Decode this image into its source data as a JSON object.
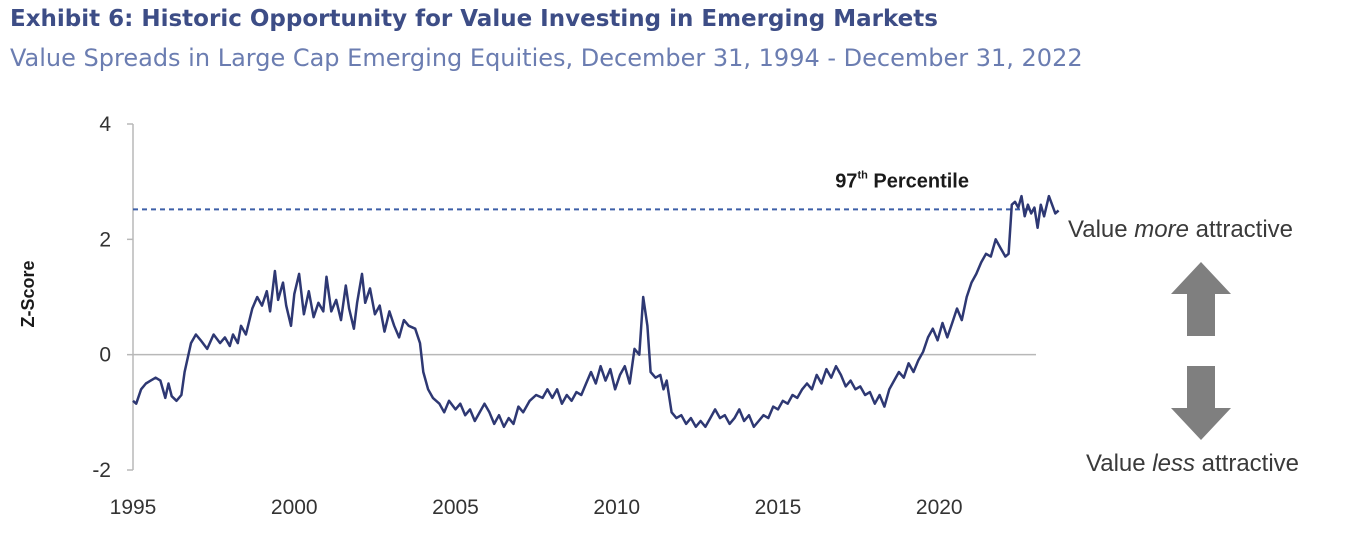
{
  "header": {
    "title": "Exhibit 6: Historic Opportunity for Value Investing in Emerging Markets",
    "subtitle": "Value Spreads in Large Cap Emerging Equities, December 31, 1994 - December 31, 2022"
  },
  "annotations": {
    "percentile_label": "97",
    "percentile_sup": "th",
    "percentile_suffix": " Percentile",
    "more_prefix": "Value ",
    "more_emph": "more",
    "more_suffix": " attractive",
    "less_prefix": "Value ",
    "less_emph": "less",
    "less_suffix": " attractive",
    "up_arrow_icon": "up-arrow-icon",
    "down_arrow_icon": "down-arrow-icon"
  },
  "colors": {
    "line": "#2e3873",
    "reference_line": "#3d5fa8",
    "title": "#3d4d86",
    "subtitle": "#6b7db1",
    "arrow": "#7f7f7f",
    "axis": "#b8b8b8"
  },
  "chart_data": {
    "type": "line",
    "title": "",
    "xlabel": "",
    "ylabel": "Z-Score",
    "xlim": [
      1995,
      2023
    ],
    "ylim": [
      -2,
      4
    ],
    "xticks": [
      1995,
      2000,
      2005,
      2010,
      2015,
      2020
    ],
    "yticks": [
      -2,
      0,
      2,
      4
    ],
    "reference_line": {
      "y": 2.52,
      "label": "97th Percentile",
      "style": "dashed"
    },
    "grid": false,
    "series": [
      {
        "values": [
          [
            1995.0,
            -0.8
          ],
          [
            1995.1,
            -0.85
          ],
          [
            1995.25,
            -0.6
          ],
          [
            1995.4,
            -0.5
          ],
          [
            1995.55,
            -0.45
          ],
          [
            1995.7,
            -0.4
          ],
          [
            1995.85,
            -0.45
          ],
          [
            1996.0,
            -0.75
          ],
          [
            1996.1,
            -0.5
          ],
          [
            1996.2,
            -0.72
          ],
          [
            1996.35,
            -0.8
          ],
          [
            1996.5,
            -0.7
          ],
          [
            1996.6,
            -0.3
          ],
          [
            1996.8,
            0.2
          ],
          [
            1996.95,
            0.35
          ],
          [
            1997.1,
            0.25
          ],
          [
            1997.3,
            0.1
          ],
          [
            1997.5,
            0.35
          ],
          [
            1997.7,
            0.2
          ],
          [
            1997.85,
            0.3
          ],
          [
            1998.0,
            0.15
          ],
          [
            1998.1,
            0.35
          ],
          [
            1998.25,
            0.2
          ],
          [
            1998.35,
            0.5
          ],
          [
            1998.5,
            0.35
          ],
          [
            1998.7,
            0.8
          ],
          [
            1998.85,
            1.0
          ],
          [
            1999.0,
            0.85
          ],
          [
            1999.15,
            1.1
          ],
          [
            1999.25,
            0.75
          ],
          [
            1999.4,
            1.45
          ],
          [
            1999.5,
            0.95
          ],
          [
            1999.65,
            1.25
          ],
          [
            1999.75,
            0.85
          ],
          [
            1999.9,
            0.5
          ],
          [
            2000.0,
            1.05
          ],
          [
            2000.15,
            1.4
          ],
          [
            2000.3,
            0.7
          ],
          [
            2000.45,
            1.1
          ],
          [
            2000.6,
            0.65
          ],
          [
            2000.75,
            0.9
          ],
          [
            2000.9,
            0.75
          ],
          [
            2001.0,
            1.35
          ],
          [
            2001.15,
            0.75
          ],
          [
            2001.3,
            0.95
          ],
          [
            2001.45,
            0.6
          ],
          [
            2001.6,
            1.2
          ],
          [
            2001.7,
            0.8
          ],
          [
            2001.85,
            0.45
          ],
          [
            2001.95,
            0.9
          ],
          [
            2002.1,
            1.4
          ],
          [
            2002.2,
            0.9
          ],
          [
            2002.35,
            1.15
          ],
          [
            2002.5,
            0.7
          ],
          [
            2002.65,
            0.85
          ],
          [
            2002.8,
            0.4
          ],
          [
            2002.95,
            0.75
          ],
          [
            2003.1,
            0.5
          ],
          [
            2003.25,
            0.3
          ],
          [
            2003.4,
            0.6
          ],
          [
            2003.55,
            0.5
          ],
          [
            2003.75,
            0.45
          ],
          [
            2003.9,
            0.2
          ],
          [
            2004.0,
            -0.3
          ],
          [
            2004.15,
            -0.6
          ],
          [
            2004.3,
            -0.75
          ],
          [
            2004.5,
            -0.85
          ],
          [
            2004.65,
            -1.0
          ],
          [
            2004.8,
            -0.8
          ],
          [
            2005.0,
            -0.95
          ],
          [
            2005.15,
            -0.85
          ],
          [
            2005.3,
            -1.05
          ],
          [
            2005.45,
            -0.95
          ],
          [
            2005.6,
            -1.15
          ],
          [
            2005.75,
            -1.0
          ],
          [
            2005.9,
            -0.85
          ],
          [
            2006.05,
            -1.0
          ],
          [
            2006.2,
            -1.2
          ],
          [
            2006.35,
            -1.05
          ],
          [
            2006.5,
            -1.25
          ],
          [
            2006.65,
            -1.1
          ],
          [
            2006.8,
            -1.2
          ],
          [
            2006.95,
            -0.9
          ],
          [
            2007.1,
            -1.0
          ],
          [
            2007.3,
            -0.8
          ],
          [
            2007.5,
            -0.7
          ],
          [
            2007.7,
            -0.75
          ],
          [
            2007.85,
            -0.6
          ],
          [
            2008.0,
            -0.75
          ],
          [
            2008.15,
            -0.6
          ],
          [
            2008.3,
            -0.85
          ],
          [
            2008.45,
            -0.7
          ],
          [
            2008.6,
            -0.8
          ],
          [
            2008.75,
            -0.65
          ],
          [
            2008.9,
            -0.7
          ],
          [
            2009.05,
            -0.5
          ],
          [
            2009.2,
            -0.3
          ],
          [
            2009.35,
            -0.5
          ],
          [
            2009.5,
            -0.2
          ],
          [
            2009.65,
            -0.45
          ],
          [
            2009.8,
            -0.25
          ],
          [
            2009.95,
            -0.6
          ],
          [
            2010.1,
            -0.35
          ],
          [
            2010.25,
            -0.2
          ],
          [
            2010.4,
            -0.5
          ],
          [
            2010.55,
            0.1
          ],
          [
            2010.7,
            0.0
          ],
          [
            2010.82,
            1.0
          ],
          [
            2010.95,
            0.5
          ],
          [
            2011.05,
            -0.3
          ],
          [
            2011.2,
            -0.4
          ],
          [
            2011.35,
            -0.35
          ],
          [
            2011.45,
            -0.6
          ],
          [
            2011.55,
            -0.45
          ],
          [
            2011.7,
            -1.0
          ],
          [
            2011.85,
            -1.1
          ],
          [
            2012.0,
            -1.05
          ],
          [
            2012.15,
            -1.2
          ],
          [
            2012.3,
            -1.1
          ],
          [
            2012.45,
            -1.25
          ],
          [
            2012.6,
            -1.15
          ],
          [
            2012.75,
            -1.25
          ],
          [
            2012.9,
            -1.1
          ],
          [
            2013.05,
            -0.95
          ],
          [
            2013.2,
            -1.1
          ],
          [
            2013.35,
            -1.05
          ],
          [
            2013.5,
            -1.2
          ],
          [
            2013.65,
            -1.1
          ],
          [
            2013.8,
            -0.95
          ],
          [
            2013.95,
            -1.15
          ],
          [
            2014.1,
            -1.05
          ],
          [
            2014.25,
            -1.25
          ],
          [
            2014.4,
            -1.15
          ],
          [
            2014.55,
            -1.05
          ],
          [
            2014.7,
            -1.1
          ],
          [
            2014.85,
            -0.9
          ],
          [
            2015.0,
            -0.95
          ],
          [
            2015.15,
            -0.8
          ],
          [
            2015.3,
            -0.85
          ],
          [
            2015.45,
            -0.7
          ],
          [
            2015.6,
            -0.75
          ],
          [
            2015.75,
            -0.6
          ],
          [
            2015.9,
            -0.5
          ],
          [
            2016.05,
            -0.6
          ],
          [
            2016.2,
            -0.35
          ],
          [
            2016.35,
            -0.5
          ],
          [
            2016.5,
            -0.25
          ],
          [
            2016.65,
            -0.4
          ],
          [
            2016.8,
            -0.2
          ],
          [
            2016.95,
            -0.35
          ],
          [
            2017.1,
            -0.55
          ],
          [
            2017.25,
            -0.45
          ],
          [
            2017.4,
            -0.6
          ],
          [
            2017.55,
            -0.55
          ],
          [
            2017.7,
            -0.7
          ],
          [
            2017.85,
            -0.65
          ],
          [
            2018.0,
            -0.85
          ],
          [
            2018.15,
            -0.7
          ],
          [
            2018.3,
            -0.9
          ],
          [
            2018.45,
            -0.6
          ],
          [
            2018.6,
            -0.45
          ],
          [
            2018.75,
            -0.3
          ],
          [
            2018.9,
            -0.4
          ],
          [
            2019.05,
            -0.15
          ],
          [
            2019.2,
            -0.3
          ],
          [
            2019.35,
            -0.1
          ],
          [
            2019.5,
            0.05
          ],
          [
            2019.65,
            0.3
          ],
          [
            2019.8,
            0.45
          ],
          [
            2019.95,
            0.25
          ],
          [
            2020.1,
            0.55
          ],
          [
            2020.25,
            0.3
          ],
          [
            2020.4,
            0.55
          ],
          [
            2020.55,
            0.8
          ],
          [
            2020.7,
            0.6
          ],
          [
            2020.85,
            1.0
          ],
          [
            2021.0,
            1.25
          ],
          [
            2021.15,
            1.4
          ],
          [
            2021.3,
            1.6
          ],
          [
            2021.45,
            1.75
          ],
          [
            2021.6,
            1.7
          ],
          [
            2021.75,
            2.0
          ],
          [
            2021.9,
            1.85
          ],
          [
            2022.05,
            1.7
          ],
          [
            2022.15,
            1.75
          ],
          [
            2022.25,
            2.6
          ],
          [
            2022.35,
            2.65
          ],
          [
            2022.45,
            2.55
          ],
          [
            2022.55,
            2.75
          ],
          [
            2022.65,
            2.4
          ],
          [
            2022.75,
            2.6
          ],
          [
            2022.85,
            2.45
          ],
          [
            2022.95,
            2.55
          ],
          [
            2023.05,
            2.2
          ],
          [
            2023.15,
            2.6
          ],
          [
            2023.25,
            2.4
          ],
          [
            2023.4,
            2.75
          ],
          [
            2023.5,
            2.6
          ],
          [
            2023.6,
            2.45
          ],
          [
            2023.7,
            2.5
          ]
        ]
      }
    ]
  }
}
